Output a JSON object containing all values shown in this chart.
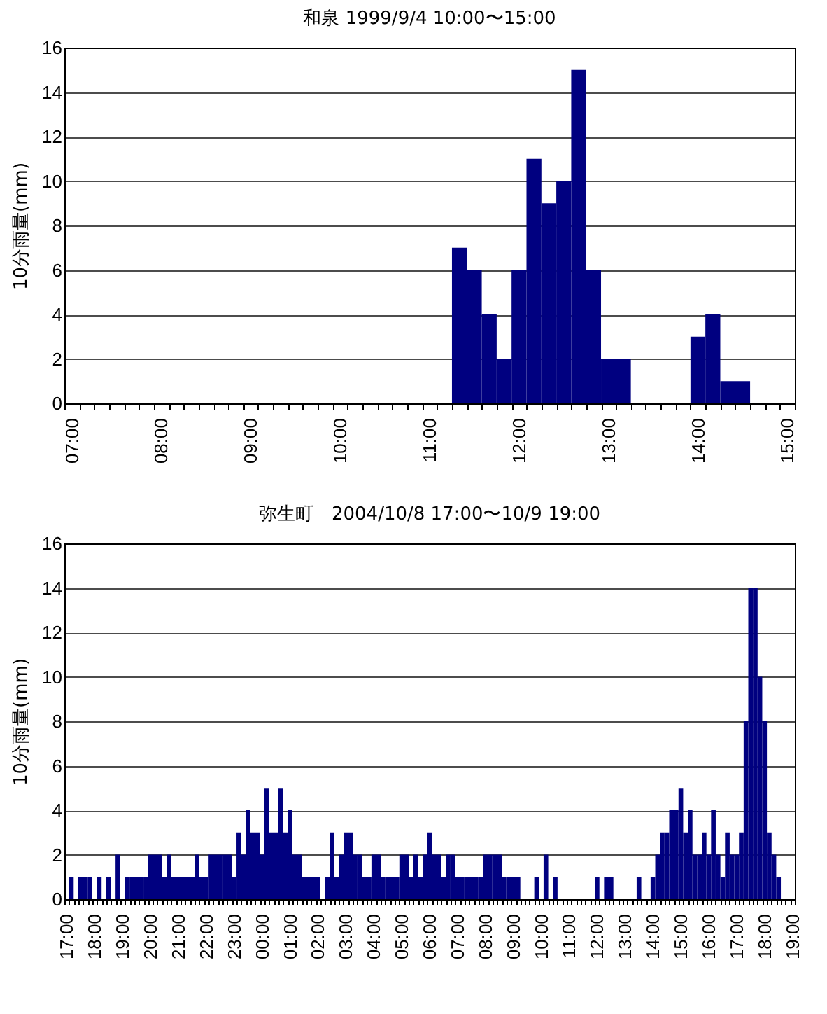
{
  "chart_data": [
    {
      "type": "bar",
      "title": "和泉 1999/9/4 10:00〜15:00",
      "ylabel": "10分雨量(mm)",
      "color": "#000080",
      "grid": "y",
      "ylim": [
        0,
        16
      ],
      "yticks": [
        0,
        2,
        4,
        6,
        8,
        10,
        12,
        14,
        16
      ],
      "categories": [
        "07:00",
        null,
        null,
        null,
        null,
        null,
        "08:00",
        null,
        null,
        null,
        null,
        null,
        "09:00",
        null,
        null,
        null,
        null,
        null,
        "10:00",
        null,
        null,
        null,
        null,
        null,
        "11:00",
        null,
        null,
        null,
        null,
        null,
        "12:00",
        null,
        null,
        null,
        null,
        null,
        "13:00",
        null,
        null,
        null,
        null,
        null,
        "14:00",
        null,
        null,
        null,
        null,
        null,
        "15:00"
      ],
      "values": [
        0,
        0,
        0,
        0,
        0,
        0,
        0,
        0,
        0,
        0,
        0,
        0,
        0,
        0,
        0,
        0,
        0,
        0,
        0,
        0,
        0,
        0,
        0,
        0,
        0,
        0,
        7,
        6,
        4,
        2,
        6,
        11,
        9,
        10,
        15,
        6,
        2,
        2,
        0,
        0,
        0,
        0,
        3,
        4,
        1,
        1,
        0,
        0,
        0
      ]
    },
    {
      "type": "bar",
      "title": "弥生町　2004/10/8 17:00〜10/9 19:00",
      "ylabel": "10分雨量(mm)",
      "color": "#000080",
      "grid": "y",
      "ylim": [
        0,
        16
      ],
      "yticks": [
        0,
        2,
        4,
        6,
        8,
        10,
        12,
        14,
        16
      ],
      "categories": [
        "17:00",
        null,
        null,
        null,
        null,
        null,
        "18:00",
        null,
        null,
        null,
        null,
        null,
        "19:00",
        null,
        null,
        null,
        null,
        null,
        "20:00",
        null,
        null,
        null,
        null,
        null,
        "21:00",
        null,
        null,
        null,
        null,
        null,
        "22:00",
        null,
        null,
        null,
        null,
        null,
        "23:00",
        null,
        null,
        null,
        null,
        null,
        "00:00",
        null,
        null,
        null,
        null,
        null,
        "01:00",
        null,
        null,
        null,
        null,
        null,
        "02:00",
        null,
        null,
        null,
        null,
        null,
        "03:00",
        null,
        null,
        null,
        null,
        null,
        "04:00",
        null,
        null,
        null,
        null,
        null,
        "05:00",
        null,
        null,
        null,
        null,
        null,
        "06:00",
        null,
        null,
        null,
        null,
        null,
        "07:00",
        null,
        null,
        null,
        null,
        null,
        "08:00",
        null,
        null,
        null,
        null,
        null,
        "09:00",
        null,
        null,
        null,
        null,
        null,
        "10:00",
        null,
        null,
        null,
        null,
        null,
        "11:00",
        null,
        null,
        null,
        null,
        null,
        "12:00",
        null,
        null,
        null,
        null,
        null,
        "13:00",
        null,
        null,
        null,
        null,
        null,
        "14:00",
        null,
        null,
        null,
        null,
        null,
        "15:00",
        null,
        null,
        null,
        null,
        null,
        "16:00",
        null,
        null,
        null,
        null,
        null,
        "17:00",
        null,
        null,
        null,
        null,
        null,
        "18:00",
        null,
        null,
        null,
        null,
        null,
        "19:00"
      ],
      "values": [
        0,
        1,
        0,
        1,
        1,
        1,
        0,
        1,
        0,
        1,
        0,
        2,
        0,
        1,
        1,
        1,
        1,
        1,
        2,
        2,
        2,
        1,
        2,
        1,
        1,
        1,
        1,
        1,
        2,
        1,
        1,
        2,
        2,
        2,
        2,
        2,
        1,
        3,
        2,
        4,
        3,
        3,
        2,
        5,
        3,
        3,
        5,
        3,
        4,
        2,
        2,
        1,
        1,
        1,
        1,
        0,
        1,
        3,
        1,
        2,
        3,
        3,
        2,
        2,
        1,
        1,
        2,
        2,
        1,
        1,
        1,
        1,
        2,
        2,
        1,
        2,
        1,
        2,
        3,
        2,
        2,
        1,
        2,
        2,
        1,
        1,
        1,
        1,
        1,
        1,
        2,
        2,
        2,
        2,
        1,
        1,
        1,
        1,
        0,
        0,
        0,
        1,
        0,
        2,
        0,
        1,
        0,
        0,
        0,
        0,
        0,
        0,
        0,
        0,
        1,
        0,
        1,
        1,
        0,
        0,
        0,
        0,
        0,
        1,
        0,
        0,
        1,
        2,
        3,
        3,
        4,
        4,
        5,
        3,
        4,
        2,
        2,
        3,
        2,
        4,
        2,
        1,
        3,
        2,
        2,
        3,
        8,
        14,
        14,
        10,
        8,
        3,
        2,
        1,
        0,
        0,
        0
      ]
    }
  ]
}
